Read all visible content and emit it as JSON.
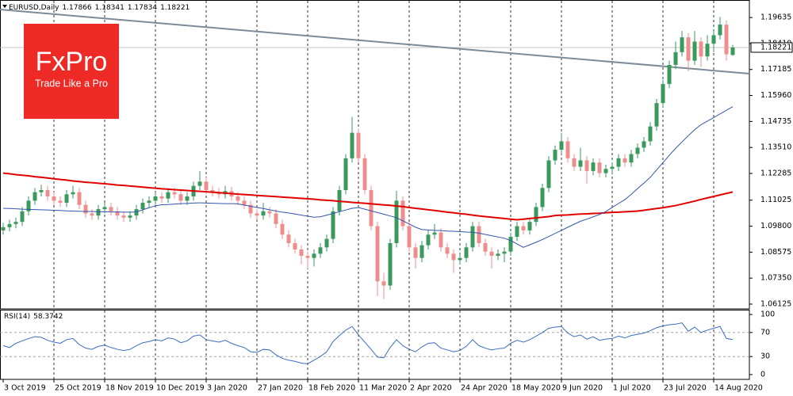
{
  "logo": {
    "brand": "FxPro",
    "tagline": "Trade Like a Pro"
  },
  "chart_data": [
    {
      "type": "candlestick",
      "title": "EURUSD,Daily",
      "up_color": "#3a9a5c",
      "down_color": "#ef8c8c",
      "categories": [
        "3 Oct 2019",
        null,
        null,
        null,
        null,
        null,
        null,
        null,
        "25 Oct 2019",
        null,
        null,
        null,
        null,
        null,
        null,
        null,
        "18 Nov 2019",
        null,
        null,
        null,
        null,
        null,
        null,
        null,
        "10 Dec 2019",
        null,
        null,
        null,
        null,
        null,
        null,
        null,
        "3 Jan 2020",
        null,
        null,
        null,
        null,
        null,
        null,
        null,
        "27 Jan 2020",
        null,
        null,
        null,
        null,
        null,
        null,
        null,
        "18 Feb 2020",
        null,
        null,
        null,
        null,
        null,
        null,
        null,
        "11 Mar 2020",
        null,
        null,
        null,
        null,
        null,
        null,
        null,
        "2 Apr 2020",
        null,
        null,
        null,
        null,
        null,
        null,
        null,
        "24 Apr 2020",
        null,
        null,
        null,
        null,
        null,
        null,
        null,
        "18 May 2020",
        null,
        null,
        null,
        null,
        null,
        null,
        null,
        "9 Jun 2020",
        null,
        null,
        null,
        null,
        null,
        null,
        null,
        "1 Jul 2020",
        null,
        null,
        null,
        null,
        null,
        null,
        null,
        "23 Jul 2020",
        null,
        null,
        null,
        null,
        null,
        null,
        null,
        "14 Aug 2020",
        null,
        null,
        null
      ],
      "open": [
        1.096,
        1.0975,
        1.099,
        1.1,
        1.105,
        1.11,
        1.114,
        1.115,
        1.112,
        1.11,
        1.109,
        1.113,
        1.114,
        1.108,
        1.104,
        1.103,
        1.106,
        1.107,
        1.105,
        1.103,
        1.102,
        1.103,
        1.106,
        1.109,
        1.11,
        1.112,
        1.111,
        1.114,
        1.113,
        1.11,
        1.112,
        1.117,
        1.119,
        1.115,
        1.114,
        1.113,
        1.1145,
        1.112,
        1.11,
        1.108,
        1.104,
        1.103,
        1.105,
        1.104,
        1.099,
        1.094,
        1.09,
        1.087,
        1.084,
        1.083,
        1.085,
        1.088,
        1.092,
        1.105,
        1.115,
        1.13,
        1.142,
        1.13,
        1.115,
        1.098,
        1.072,
        1.07,
        1.09,
        1.11,
        1.098,
        1.088,
        1.083,
        1.089,
        1.094,
        1.095,
        1.088,
        1.085,
        1.082,
        1.083,
        1.088,
        1.098,
        1.09,
        1.086,
        1.084,
        1.085,
        1.086,
        1.093,
        1.098,
        1.096,
        1.1,
        1.107,
        1.116,
        1.129,
        1.134,
        1.138,
        1.13,
        1.126,
        1.129,
        1.124,
        1.128,
        1.123,
        1.125,
        1.126,
        1.13,
        1.128,
        1.132,
        1.135,
        1.138,
        1.145,
        1.156,
        1.165,
        1.174,
        1.18,
        1.187,
        1.176,
        1.185,
        1.178,
        1.184,
        1.188,
        1.193,
        1.17866
      ],
      "high": [
        1.0995,
        1.101,
        1.102,
        1.107,
        1.112,
        1.116,
        1.1175,
        1.117,
        1.114,
        1.112,
        1.115,
        1.117,
        1.116,
        1.11,
        1.106,
        1.108,
        1.109,
        1.109,
        1.107,
        1.105,
        1.105,
        1.108,
        1.111,
        1.112,
        1.114,
        1.114,
        1.116,
        1.116,
        1.115,
        1.114,
        1.119,
        1.124,
        1.121,
        1.117,
        1.116,
        1.117,
        1.1165,
        1.114,
        1.112,
        1.11,
        1.106,
        1.109,
        1.107,
        1.106,
        1.101,
        1.096,
        1.092,
        1.089,
        1.086,
        1.087,
        1.09,
        1.094,
        1.107,
        1.117,
        1.132,
        1.1495,
        1.144,
        1.132,
        1.117,
        1.1,
        1.076,
        1.092,
        1.1147,
        1.112,
        1.1,
        1.09,
        1.091,
        1.096,
        1.099,
        1.097,
        1.09,
        1.087,
        1.085,
        1.09,
        1.1,
        1.1,
        1.092,
        1.088,
        1.087,
        1.088,
        1.095,
        1.1,
        1.1,
        1.102,
        1.109,
        1.118,
        1.131,
        1.136,
        1.142,
        1.14,
        1.132,
        1.135,
        1.131,
        1.13,
        1.13,
        1.127,
        1.128,
        1.132,
        1.132,
        1.134,
        1.137,
        1.14,
        1.147,
        1.158,
        1.167,
        1.176,
        1.185,
        1.19,
        1.189,
        1.19,
        1.187,
        1.188,
        1.19,
        1.1966,
        1.195,
        1.18341
      ],
      "low": [
        1.094,
        1.0955,
        1.097,
        1.098,
        1.103,
        1.108,
        1.112,
        1.11,
        1.108,
        1.107,
        1.107,
        1.111,
        1.106,
        1.102,
        1.101,
        1.101,
        1.104,
        1.103,
        1.101,
        1.1,
        1.1,
        1.101,
        1.104,
        1.107,
        1.108,
        1.109,
        1.109,
        1.111,
        1.108,
        1.108,
        1.11,
        1.115,
        1.113,
        1.112,
        1.111,
        1.111,
        1.11,
        1.108,
        1.106,
        1.102,
        1.101,
        1.101,
        1.102,
        1.097,
        1.092,
        1.088,
        1.085,
        1.08,
        1.078,
        1.079,
        1.083,
        1.086,
        1.09,
        1.103,
        1.113,
        1.128,
        1.128,
        1.113,
        1.096,
        1.065,
        1.0636,
        1.068,
        1.088,
        1.096,
        1.086,
        1.078,
        1.081,
        1.087,
        1.092,
        1.086,
        1.083,
        1.076,
        1.08,
        1.081,
        1.086,
        1.088,
        1.084,
        1.078,
        1.082,
        1.081,
        1.084,
        1.091,
        1.094,
        1.094,
        1.098,
        1.105,
        1.114,
        1.127,
        1.132,
        1.128,
        1.124,
        1.124,
        1.118,
        1.122,
        1.121,
        1.121,
        1.123,
        1.124,
        1.126,
        1.126,
        1.13,
        1.133,
        1.136,
        1.143,
        1.154,
        1.163,
        1.172,
        1.178,
        1.171,
        1.174,
        1.173,
        1.176,
        1.18,
        1.186,
        1.176,
        1.17834
      ],
      "close": [
        1.0975,
        1.099,
        1.1,
        1.105,
        1.11,
        1.114,
        1.115,
        1.112,
        1.11,
        1.109,
        1.113,
        1.114,
        1.108,
        1.104,
        1.103,
        1.106,
        1.107,
        1.105,
        1.103,
        1.102,
        1.103,
        1.106,
        1.109,
        1.11,
        1.112,
        1.111,
        1.114,
        1.113,
        1.11,
        1.112,
        1.117,
        1.119,
        1.115,
        1.114,
        1.113,
        1.1145,
        1.112,
        1.11,
        1.108,
        1.104,
        1.103,
        1.105,
        1.104,
        1.099,
        1.094,
        1.09,
        1.087,
        1.084,
        1.083,
        1.085,
        1.088,
        1.092,
        1.105,
        1.115,
        1.13,
        1.142,
        1.13,
        1.115,
        1.098,
        1.072,
        1.07,
        1.09,
        1.11,
        1.098,
        1.088,
        1.083,
        1.089,
        1.094,
        1.095,
        1.088,
        1.085,
        1.082,
        1.083,
        1.088,
        1.098,
        1.09,
        1.086,
        1.084,
        1.085,
        1.086,
        1.093,
        1.098,
        1.096,
        1.1,
        1.107,
        1.116,
        1.129,
        1.134,
        1.138,
        1.13,
        1.126,
        1.129,
        1.124,
        1.128,
        1.123,
        1.125,
        1.126,
        1.13,
        1.128,
        1.132,
        1.135,
        1.138,
        1.145,
        1.156,
        1.165,
        1.174,
        1.18,
        1.187,
        1.176,
        1.185,
        1.178,
        1.184,
        1.188,
        1.193,
        1.179,
        1.18221
      ],
      "series": [
        {
          "color": "#e00000",
          "width": 2,
          "values": [
            1.123,
            1.1227,
            1.1223,
            1.122,
            1.1217,
            1.1213,
            1.121,
            1.1207,
            1.1203,
            1.12,
            1.1197,
            1.1193,
            1.119,
            1.1187,
            1.1185,
            1.1182,
            1.118,
            1.1177,
            1.1174,
            1.1172,
            1.1169,
            1.1167,
            1.1164,
            1.1161,
            1.1159,
            1.1156,
            1.1154,
            1.1152,
            1.115,
            1.1148,
            1.1146,
            1.1144,
            1.1142,
            1.114,
            1.1138,
            1.1136,
            1.1133,
            1.1131,
            1.1129,
            1.1127,
            1.1125,
            1.1123,
            1.1121,
            1.1119,
            1.1117,
            1.1115,
            1.1113,
            1.1111,
            1.1109,
            1.1107,
            1.1104,
            1.1102,
            1.11,
            1.1097,
            1.1095,
            1.1092,
            1.109,
            1.1088,
            1.1085,
            1.1083,
            1.108,
            1.1078,
            1.1075,
            1.1072,
            1.1068,
            1.1064,
            1.1061,
            1.1057,
            1.1054,
            1.105,
            1.1046,
            1.1043,
            1.1039,
            1.1036,
            1.1032,
            1.1028,
            1.1025,
            1.1022,
            1.1019,
            1.1016,
            1.1013,
            1.101,
            1.1013,
            1.1016,
            1.1019,
            1.1022,
            1.1025,
            1.103,
            1.1032,
            1.1033,
            1.1035,
            1.1037,
            1.1038,
            1.104,
            1.1041,
            1.1043,
            1.1045,
            1.1046,
            1.1048,
            1.1049,
            1.1051,
            1.1055,
            1.1059,
            1.1063,
            1.1067,
            1.1072,
            1.1077,
            1.1084,
            1.1091,
            1.1098,
            1.1106,
            1.1113,
            1.112,
            1.1127,
            1.1134,
            1.1141
          ]
        },
        {
          "color": "#3355aa",
          "width": 1,
          "values": [
            1.1064,
            1.1063,
            1.1062,
            1.106,
            1.1059,
            1.1058,
            1.1057,
            1.1056,
            1.1055,
            1.1054,
            1.1052,
            1.1051,
            1.105,
            1.1049,
            1.1049,
            1.1048,
            1.1048,
            1.1047,
            1.1047,
            1.1046,
            1.1046,
            1.1047,
            1.1057,
            1.1067,
            1.1076,
            1.1081,
            1.1082,
            1.1084,
            1.1086,
            1.1087,
            1.1089,
            1.109,
            1.1089,
            1.1088,
            1.1087,
            1.1086,
            1.1086,
            1.1085,
            1.1079,
            1.1074,
            1.1068,
            1.1063,
            1.1057,
            1.1051,
            1.1046,
            1.1042,
            1.1037,
            1.1032,
            1.1027,
            1.1022,
            1.1024,
            1.1032,
            1.104,
            1.1048,
            1.1056,
            1.1064,
            1.1068,
            1.106,
            1.1052,
            1.1044,
            1.1036,
            1.1028,
            1.102,
            1.1005,
            1.099,
            1.0975,
            1.0964,
            1.0962,
            1.096,
            1.0959,
            1.0957,
            1.0956,
            1.0954,
            1.0952,
            1.0951,
            1.0947,
            1.0941,
            1.0935,
            1.0929,
            1.0923,
            1.0912,
            1.0896,
            1.088,
            1.0892,
            1.0904,
            1.0917,
            1.0931,
            1.0946,
            1.096,
            1.0975,
            1.0989,
            1.1003,
            1.1013,
            1.1024,
            1.1035,
            1.1049,
            1.1068,
            1.1087,
            1.1105,
            1.113,
            1.1157,
            1.1183,
            1.121,
            1.1245,
            1.1279,
            1.1314,
            1.1347,
            1.1377,
            1.1406,
            1.1435,
            1.1458,
            1.1475,
            1.1492,
            1.1509,
            1.1526,
            1.1543
          ]
        }
      ],
      "ylim": [
        1.059,
        1.2046
      ],
      "yticks": [
        1.19635,
        {
          "value": 1.1841,
          "label": "1.18410"
        },
        1.17185,
        {
          "value": 1.1596,
          "label": "1.15960"
        },
        1.14735,
        {
          "value": 1.1351,
          "label": "1.13510"
        },
        1.12285,
        1.11025,
        {
          "value": 1.098,
          "label": "1.09800"
        },
        1.08575,
        {
          "value": 1.0735,
          "label": "1.07350"
        },
        1.06125
      ]
    },
    {
      "type": "line",
      "title": "RSI(14)",
      "series": [
        {
          "color": "#3a6cc0",
          "width": 1,
          "values": [
            48,
            45,
            52,
            56,
            60,
            63,
            62,
            57,
            54,
            52,
            58,
            60,
            50,
            44,
            42,
            47,
            49,
            45,
            42,
            40,
            42,
            48,
            53,
            55,
            58,
            56,
            61,
            59,
            53,
            56,
            64,
            66,
            58,
            56,
            54,
            57,
            52,
            48,
            45,
            38,
            37,
            42,
            41,
            33,
            27,
            24,
            22,
            19,
            18,
            24,
            30,
            38,
            55,
            65,
            74,
            80,
            66,
            54,
            42,
            29,
            28,
            45,
            58,
            48,
            42,
            38,
            46,
            52,
            53,
            44,
            41,
            38,
            40,
            47,
            58,
            48,
            44,
            41,
            43,
            44,
            52,
            57,
            54,
            58,
            64,
            70,
            77,
            79,
            80,
            69,
            63,
            66,
            59,
            63,
            57,
            59,
            60,
            64,
            61,
            65,
            67,
            69,
            73,
            78,
            81,
            83,
            84,
            86,
            72,
            79,
            70,
            74,
            77,
            80,
            60,
            58.3742
          ]
        }
      ],
      "levels": [
        30,
        70
      ],
      "ylim": [
        -8,
        108
      ],
      "yticks": [
        0,
        30,
        70,
        100
      ]
    }
  ]
}
